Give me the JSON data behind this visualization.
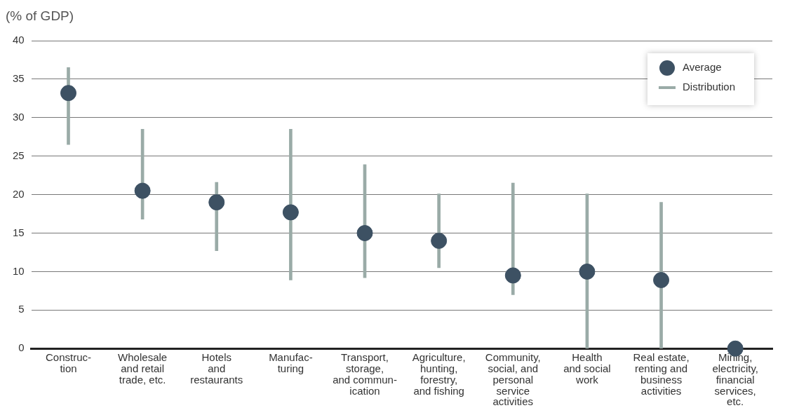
{
  "chart_data": {
    "type": "bar",
    "ylabel": "(% of GDP)",
    "categories": [
      "Construc-\ntion",
      "Wholesale\nand retail\ntrade, etc.",
      "Hotels\nand\nrestaurants",
      "Manufac-\nturing",
      "Transport,\nstorage,\nand commun-\nication",
      "Agriculture,\nhunting,\nforestry,\nand fishing",
      "Community,\nsocial, and\npersonal\nservice\nactivities",
      "Health\nand social\nwork",
      "Real estate,\nrenting and\nbusiness\nactivities",
      "Mining,\nelectricity,\nfinancial\nservices,\netc."
    ],
    "series": [
      {
        "name": "Average",
        "type": "scatter",
        "color": "#3d5163",
        "values": [
          33.2,
          20.5,
          19.0,
          17.7,
          15.0,
          14.0,
          9.5,
          10.0,
          8.9,
          0
        ]
      },
      {
        "name": "Distribution",
        "color": "#9aaba7",
        "base": [
          26.5,
          16.8,
          12.7,
          8.9,
          9.2,
          10.5,
          7.0,
          0,
          0,
          null
        ],
        "values": [
          10.0,
          11.7,
          8.9,
          19.6,
          14.7,
          9.6,
          14.5,
          20.1,
          19.0,
          null
        ]
      }
    ],
    "ylim": [
      0,
      40
    ],
    "yticks": [
      0,
      5,
      10,
      15,
      20,
      25,
      30,
      35,
      40
    ],
    "grid": "y",
    "legend": "top right",
    "marker": "circle"
  }
}
